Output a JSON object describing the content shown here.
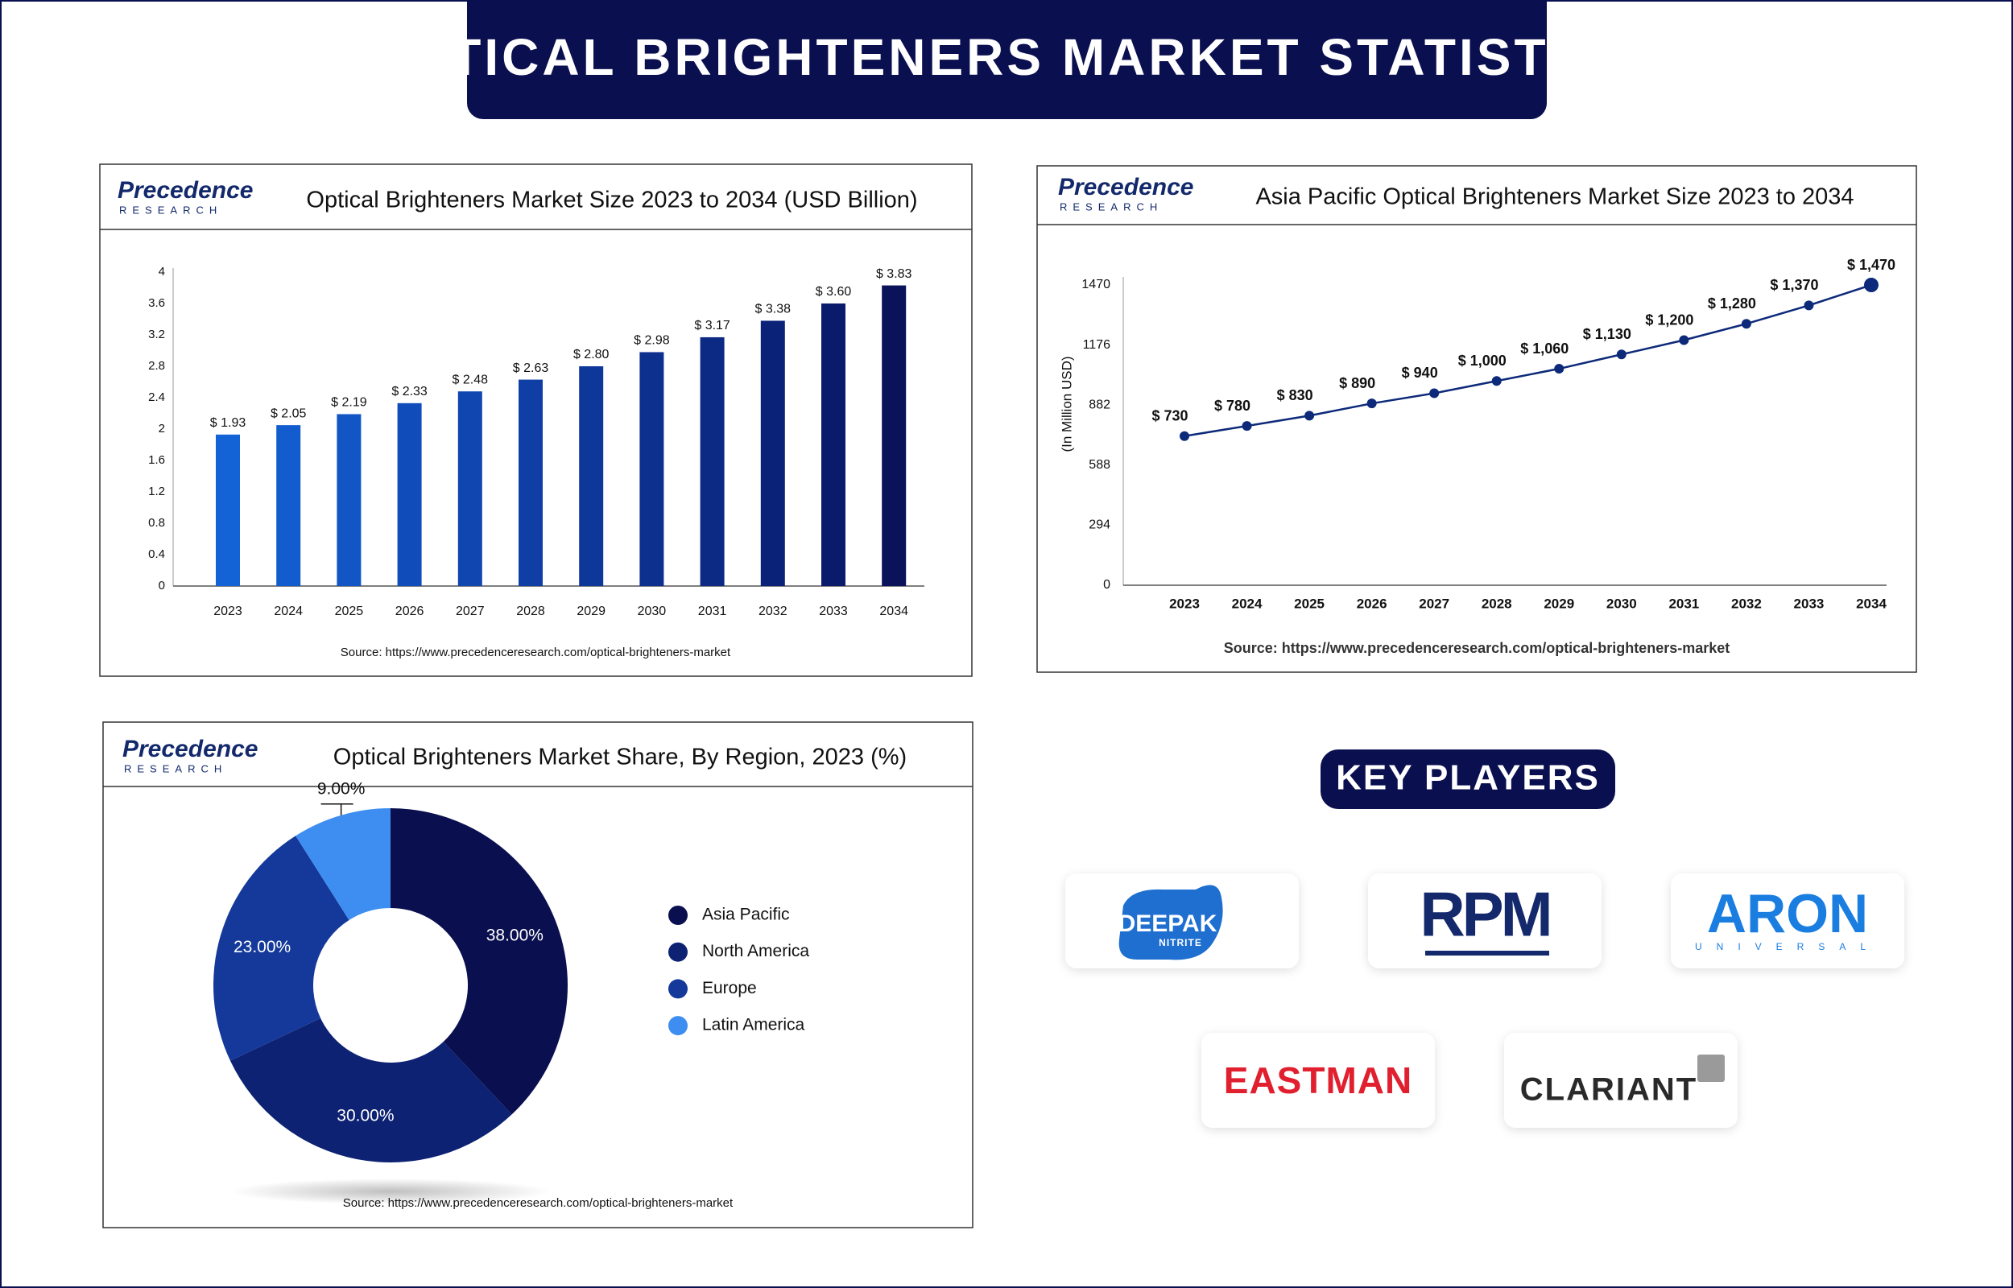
{
  "title": "OPTICAL BRIGHTENERS MARKET STATISTICS",
  "brand": {
    "name": "Precedence",
    "sub": "RESEARCH"
  },
  "chart_data": [
    {
      "type": "bar",
      "title": "Optical Brighteners Market Size 2023 to 2034 (USD Billion)",
      "categories": [
        "2023",
        "2024",
        "2025",
        "2026",
        "2027",
        "2028",
        "2029",
        "2030",
        "2031",
        "2032",
        "2033",
        "2034"
      ],
      "values": [
        1.93,
        2.05,
        2.19,
        2.33,
        2.48,
        2.63,
        2.8,
        2.98,
        3.17,
        3.38,
        3.6,
        3.83
      ],
      "value_labels": [
        "$ 1.93",
        "$ 2.05",
        "$ 2.19",
        "$ 2.33",
        "$ 2.48",
        "$ 2.63",
        "$ 2.80",
        "$ 2.98",
        "$ 3.17",
        "$ 3.38",
        "$ 3.60",
        "$ 3.83"
      ],
      "colors": [
        "#1463d6",
        "#135ccd",
        "#1255c4",
        "#114dba",
        "#1046b0",
        "#0f3fa5",
        "#0e379a",
        "#0d308f",
        "#0c2984",
        "#0b2279",
        "#0a1b6c",
        "#0a125a"
      ],
      "ylim": [
        0,
        4
      ],
      "yticks": [
        0,
        0.4,
        0.8,
        1.2,
        1.6,
        2,
        2.4,
        2.8,
        3.2,
        3.6,
        4
      ],
      "source": "Source: https://www.precedenceresearch.com/optical-brighteners-market"
    },
    {
      "type": "line",
      "title": "Asia Pacific Optical Brighteners Market Size 2023 to 2034",
      "ylabel": "(In Million USD)",
      "categories": [
        "2023",
        "2024",
        "2025",
        "2026",
        "2027",
        "2028",
        "2029",
        "2030",
        "2031",
        "2032",
        "2033",
        "2034"
      ],
      "values": [
        730,
        780,
        830,
        890,
        940,
        1000,
        1060,
        1130,
        1200,
        1280,
        1370,
        1470
      ],
      "value_labels": [
        "$ 730",
        "$ 780",
        "$ 830",
        "$ 890",
        "$ 940",
        "$ 1,000",
        "$ 1,060",
        "$ 1,130",
        "$ 1,200",
        "$ 1,280",
        "$ 1,370",
        "$ 1,470"
      ],
      "color": "#0d2a7a",
      "ylim": [
        0,
        1470
      ],
      "yticks": [
        0,
        294,
        588,
        882,
        1176,
        1470
      ],
      "source": "Source: https://www.precedenceresearch.com/optical-brighteners-market"
    },
    {
      "type": "pie",
      "title": "Optical Brighteners Market Share, By Region, 2023 (%)",
      "categories": [
        "Asia Pacific",
        "North America",
        "Europe",
        "Latin America"
      ],
      "values": [
        38,
        30,
        23,
        9
      ],
      "value_labels": [
        "38.00%",
        "30.00%",
        "23.00%",
        "9.00%"
      ],
      "colors": [
        "#0a0f4f",
        "#0d2272",
        "#14399a",
        "#3d8ef0"
      ],
      "source": "Source: https://www.precedenceresearch.com/optical-brighteners-market"
    }
  ],
  "key_players": {
    "title": "KEY PLAYERS",
    "logos": [
      {
        "name": "DEEPAK",
        "sub": "NITRITE"
      },
      {
        "name": "RPM"
      },
      {
        "name": "ARON",
        "sub": "UNIVERSAL"
      },
      {
        "name": "EASTMAN"
      },
      {
        "name": "CLARIANT"
      }
    ]
  }
}
